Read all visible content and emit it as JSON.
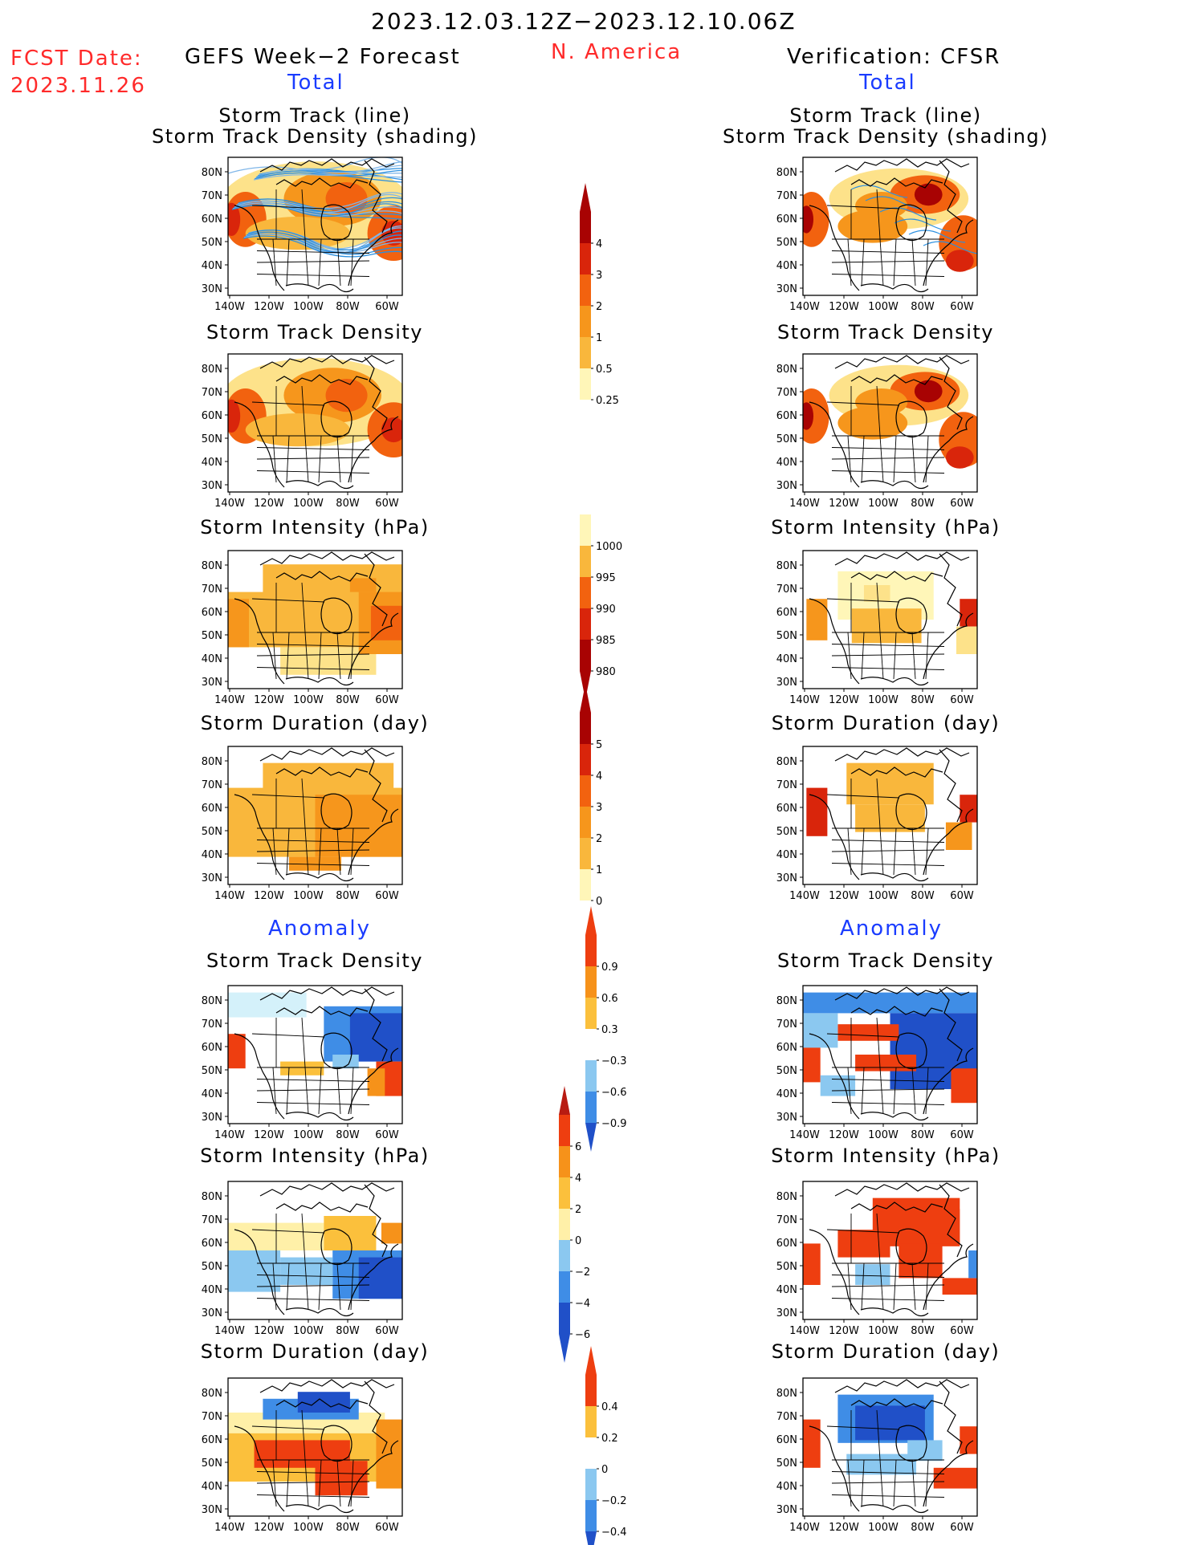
{
  "header": {
    "period": "2023.12.03.12Z−2023.12.10.06Z",
    "region": "N. America",
    "fcst_label": "FCST Date:",
    "fcst_date": "2023.11.26",
    "left_title": "GEFS Week−2 Forecast",
    "right_title": "Verification: CFSR",
    "total_label": "Total",
    "anomaly_label": "Anomaly"
  },
  "panel_titles": {
    "track_line": "Storm Track (line)",
    "track_shading": "Storm Track Density (shading)",
    "density": "Storm Track Density",
    "intensity": "Storm Intensity (hPa)",
    "duration": "Storm Duration (day)"
  },
  "map_axes": {
    "lat_ticks": [
      "80N",
      "70N",
      "60N",
      "50N",
      "40N",
      "30N"
    ],
    "lon_ticks": [
      "140W",
      "120W",
      "100W",
      "80W",
      "60W"
    ]
  },
  "colorbars": {
    "total_density": [
      "4",
      "3",
      "2",
      "1",
      "0.5",
      "0.25"
    ],
    "total_intensity": [
      "1000",
      "995",
      "990",
      "985",
      "980"
    ],
    "total_duration": [
      "5",
      "4",
      "3",
      "2",
      "1",
      "0"
    ],
    "anom_density": [
      "0.9",
      "0.6",
      "0.3",
      "−0.3",
      "−0.6",
      "−0.9"
    ],
    "anom_intensity": [
      "6",
      "4",
      "2",
      "0",
      "−2",
      "−4",
      "−6"
    ],
    "anom_duration": [
      "0.4",
      "0.2",
      "0",
      "−0.2",
      "−0.4"
    ]
  },
  "colors": {
    "red_text": "#ff2a2a",
    "blue_text": "#1a3cff",
    "total_scale": [
      "#fff6b8",
      "#fde28a",
      "#f9b73c",
      "#f6961c",
      "#f2620f",
      "#d9250b",
      "#a80303"
    ],
    "anom_scale": [
      "#2050c8",
      "#3f8de6",
      "#8bc8f0",
      "#d4f1fa",
      "#ffffff",
      "#fff0a8",
      "#fbc03c",
      "#f6921a",
      "#ee3e10"
    ]
  }
}
